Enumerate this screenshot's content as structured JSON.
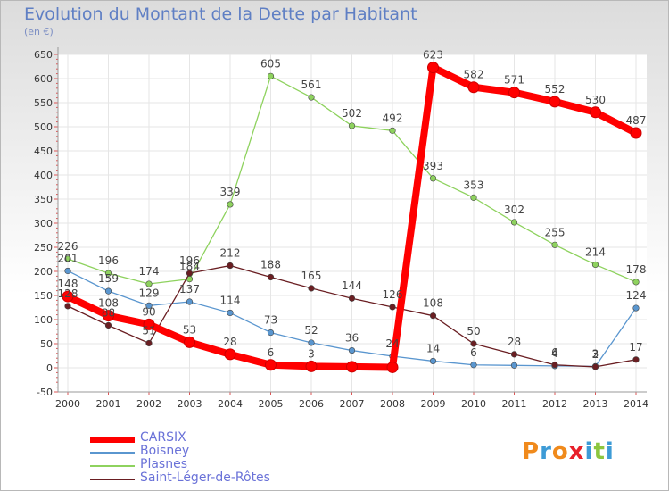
{
  "header": {
    "title": "Evolution du Montant de la Dette par Habitant",
    "unit": "(en €)"
  },
  "logo": {
    "text": "Proxiti",
    "colors": [
      "#f08a1c",
      "#3d9bd6",
      "#f08a1c",
      "#e8202a",
      "#3d9bd6",
      "#8cc63f",
      "#3d9bd6"
    ]
  },
  "chart_data": {
    "type": "line",
    "title": "Evolution du Montant de la Dette par Habitant",
    "xlabel": "",
    "ylabel": "(en €)",
    "x": [
      "2000",
      "2001",
      "2002",
      "2003",
      "2004",
      "2005",
      "2006",
      "2007",
      "2008",
      "2009",
      "2010",
      "2011",
      "2012",
      "2013",
      "2014"
    ],
    "ylim": [
      -50,
      650
    ],
    "yticks": [
      -50,
      0,
      50,
      100,
      150,
      200,
      250,
      300,
      350,
      400,
      450,
      500,
      550,
      600,
      650
    ],
    "grid": true,
    "legend_position": "bottom-left",
    "series": [
      {
        "name": "CARSIX",
        "color": "#ff0000",
        "values": [
          148,
          108,
          90,
          53,
          28,
          6,
          3,
          2,
          1,
          623,
          582,
          571,
          552,
          530,
          487
        ],
        "labels": [
          "148",
          "108",
          "90",
          "53",
          "28",
          "6",
          "3",
          "",
          "",
          "623",
          "582",
          "571",
          "552",
          "530",
          "487"
        ]
      },
      {
        "name": "Boisney",
        "color": "#5a96cf",
        "values": [
          201,
          159,
          129,
          137,
          114,
          73,
          52,
          36,
          24,
          14,
          6,
          5,
          4,
          3,
          124
        ],
        "labels": [
          "201",
          "159",
          "129",
          "137",
          "114",
          "73",
          "52",
          "36",
          "24",
          "14",
          "6",
          "",
          "4",
          "3",
          "124"
        ]
      },
      {
        "name": "Plasnes",
        "color": "#8ed25e",
        "values": [
          226,
          196,
          174,
          184,
          339,
          605,
          561,
          502,
          492,
          393,
          353,
          302,
          255,
          214,
          178
        ],
        "labels": [
          "226",
          "196",
          "174",
          "184",
          "339",
          "605",
          "561",
          "502",
          "492",
          "393",
          "353",
          "302",
          "255",
          "214",
          "178"
        ]
      },
      {
        "name": "Saint-Léger-de-Rôtes",
        "color": "#6a1e22",
        "values": [
          128,
          88,
          51,
          196,
          212,
          188,
          165,
          144,
          126,
          108,
          50,
          28,
          6,
          2,
          17
        ],
        "labels": [
          "128",
          "88",
          "51",
          "196",
          "212",
          "188",
          "165",
          "144",
          "126",
          "108",
          "50",
          "28",
          "6",
          "2",
          "17"
        ]
      }
    ]
  }
}
